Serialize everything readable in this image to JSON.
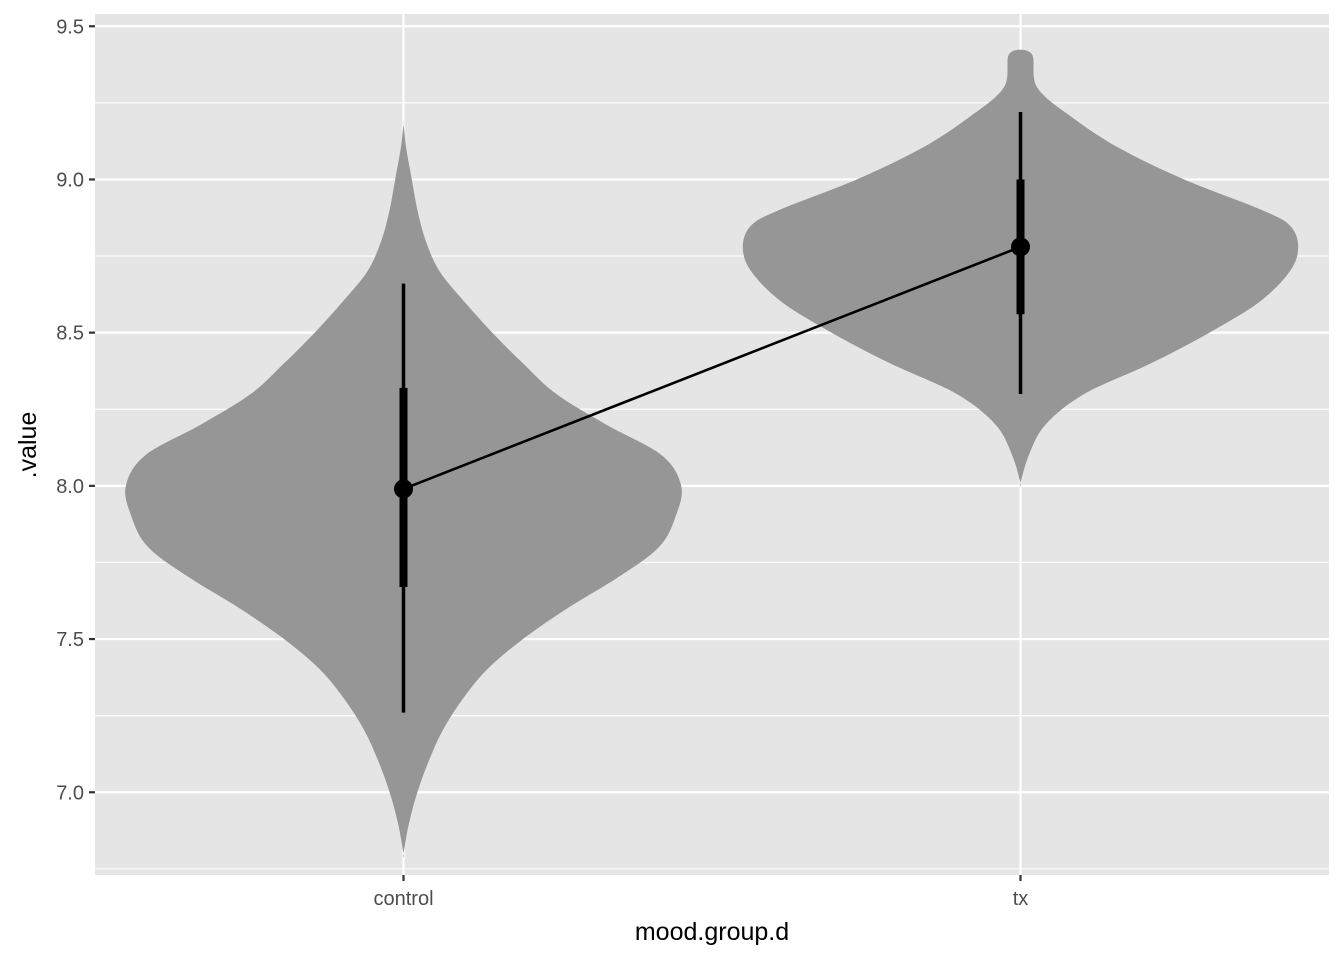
{
  "chart_data": {
    "type": "violin",
    "xlabel": "mood.group.d",
    "ylabel": ".value",
    "categories": [
      "control",
      "tx"
    ],
    "ylim": [
      6.73,
      9.54
    ],
    "y_ticks": [
      "7.0",
      "7.5",
      "8.0",
      "8.5",
      "9.0",
      "9.5"
    ],
    "y_tick_values": [
      7.0,
      7.5,
      8.0,
      8.5,
      9.0,
      9.5
    ],
    "grid": true,
    "panel_background": "#e5e5e5",
    "violin_color": "#969696",
    "point_color": "#000000",
    "groups": [
      {
        "category": "control",
        "point": 7.99,
        "interval_inner": [
          7.67,
          8.32
        ],
        "interval_outer": [
          7.26,
          8.66
        ],
        "density_extent": [
          6.8,
          9.18
        ],
        "density_profile": [
          [
            6.8,
            0.0
          ],
          [
            6.9,
            0.02
          ],
          [
            7.0,
            0.05
          ],
          [
            7.1,
            0.09
          ],
          [
            7.2,
            0.14
          ],
          [
            7.3,
            0.21
          ],
          [
            7.4,
            0.3
          ],
          [
            7.5,
            0.43
          ],
          [
            7.6,
            0.59
          ],
          [
            7.7,
            0.77
          ],
          [
            7.8,
            0.92
          ],
          [
            7.9,
            0.98
          ],
          [
            8.0,
            1.0
          ],
          [
            8.1,
            0.93
          ],
          [
            8.2,
            0.73
          ],
          [
            8.3,
            0.55
          ],
          [
            8.4,
            0.43
          ],
          [
            8.5,
            0.32
          ],
          [
            8.6,
            0.22
          ],
          [
            8.7,
            0.13
          ],
          [
            8.8,
            0.08
          ],
          [
            8.9,
            0.05
          ],
          [
            9.0,
            0.03
          ],
          [
            9.1,
            0.01
          ],
          [
            9.18,
            0.0
          ]
        ]
      },
      {
        "category": "tx",
        "point": 8.78,
        "interval_inner": [
          8.56,
          9.0
        ],
        "interval_outer": [
          8.3,
          9.22
        ],
        "density_extent": [
          8.01,
          9.41
        ],
        "density_profile": [
          [
            8.01,
            0.0
          ],
          [
            8.1,
            0.03
          ],
          [
            8.2,
            0.09
          ],
          [
            8.3,
            0.23
          ],
          [
            8.4,
            0.47
          ],
          [
            8.5,
            0.68
          ],
          [
            8.6,
            0.86
          ],
          [
            8.7,
            0.97
          ],
          [
            8.78,
            1.0
          ],
          [
            8.85,
            0.97
          ],
          [
            8.9,
            0.87
          ],
          [
            9.0,
            0.59
          ],
          [
            9.1,
            0.36
          ],
          [
            9.2,
            0.19
          ],
          [
            9.3,
            0.06
          ],
          [
            9.41,
            0.04
          ]
        ]
      }
    ],
    "connecting_line": true
  }
}
